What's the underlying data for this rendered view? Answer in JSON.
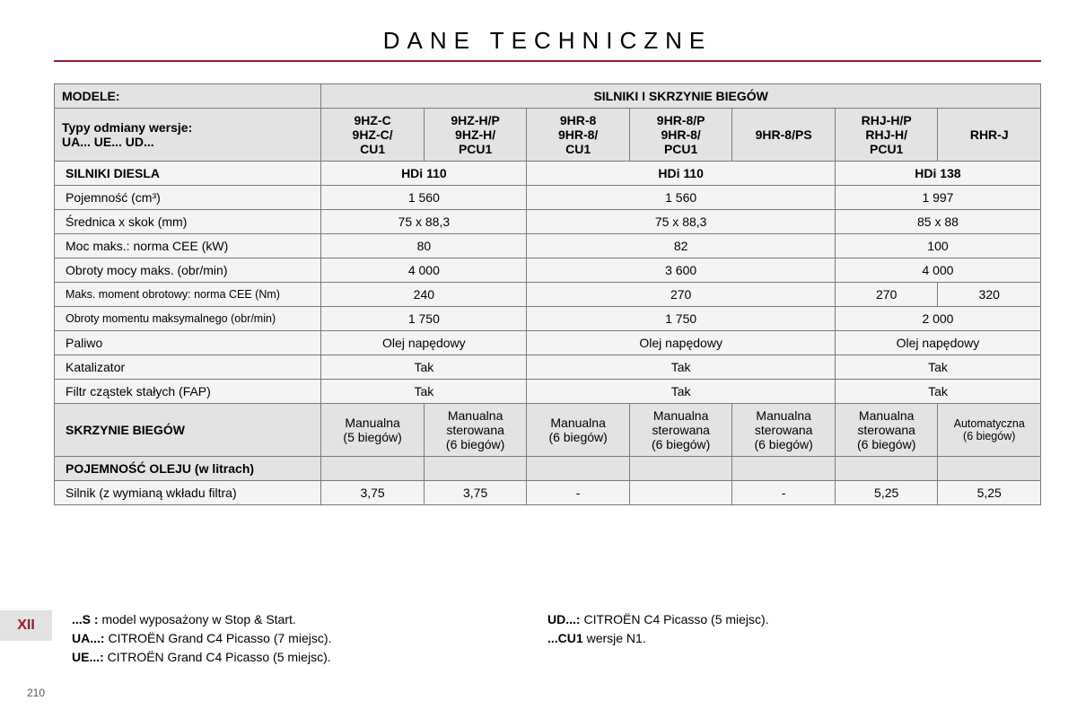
{
  "colors": {
    "rule": "#9a1b2e",
    "header_bg": "#e3e3e3",
    "body_bg": "#f4f4f4",
    "border": "#7a7a7a",
    "tab_bg": "#e3e3e3",
    "tab_text": "#9a1b2e"
  },
  "title": "DANE TECHNICZNE",
  "header": {
    "modele": "MODELE:",
    "silniki_header": "SILNIKI I SKRZYNIE BIEGÓW",
    "typy_line1": "Typy odmiany wersje:",
    "typy_line2": "UA... UE... UD...",
    "cols": [
      {
        "l1": "9HZ-C",
        "l2": "9HZ-C/",
        "l3": "CU1"
      },
      {
        "l1": "9HZ-H/P",
        "l2": "9HZ-H/",
        "l3": "PCU1"
      },
      {
        "l1": "9HR-8",
        "l2": "9HR-8/",
        "l3": "CU1"
      },
      {
        "l1": "9HR-8/P",
        "l2": "9HR-8/",
        "l3": "PCU1"
      },
      {
        "l1": "9HR-8/PS",
        "l2": "",
        "l3": ""
      },
      {
        "l1": "RHJ-H/P",
        "l2": "RHJ-H/",
        "l3": "PCU1"
      },
      {
        "l1": "RHR-J",
        "l2": "",
        "l3": ""
      }
    ]
  },
  "section_diesel": "SILNIKI DIESLA",
  "engine_names": {
    "g1": "HDi 110",
    "g2": "HDi 110",
    "g3": "HDi 138"
  },
  "rows": [
    {
      "label": "Pojemność (cm³)",
      "g1": "1 560",
      "g2": "1 560",
      "g3": "1 997"
    },
    {
      "label": "Średnica x skok (mm)",
      "g1": "75 x 88,3",
      "g2": "75 x 88,3",
      "g3": "85 x 88"
    },
    {
      "label": "Moc maks.: norma CEE (kW)",
      "g1": "80",
      "g2": "82",
      "g3": "100"
    },
    {
      "label": "Obroty mocy maks. (obr/min)",
      "g1": "4 000",
      "g2": "3 600",
      "g3": "4 000"
    }
  ],
  "torque_row": {
    "label": "Maks. moment obrotowy: norma CEE (Nm)",
    "g1": "240",
    "g2": "270",
    "g3a": "270",
    "g3b": "320"
  },
  "rows2": [
    {
      "label": "Obroty momentu maksymalnego (obr/min)",
      "g1": "1 750",
      "g2": "1 750",
      "g3": "2 000"
    },
    {
      "label": "Paliwo",
      "g1": "Olej napędowy",
      "g2": "Olej napędowy",
      "g3": "Olej napędowy"
    },
    {
      "label": "Katalizator",
      "g1": "Tak",
      "g2": "Tak",
      "g3": "Tak"
    },
    {
      "label": "Filtr cząstek stałych (FAP)",
      "g1": "Tak",
      "g2": "Tak",
      "g3": "Tak"
    }
  ],
  "gearbox": {
    "label": "SKRZYNIE BIEGÓW",
    "c1": {
      "l1": "Manualna",
      "l2": "(5 biegów)"
    },
    "c2": {
      "l1": "Manualna",
      "l2": "sterowana",
      "l3": "(6 biegów)"
    },
    "c3": {
      "l1": "Manualna",
      "l2": "(6 biegów)"
    },
    "c4": {
      "l1": "Manualna",
      "l2": "sterowana",
      "l3": "(6 biegów)"
    },
    "c5": {
      "l1": "Manualna",
      "l2": "sterowana",
      "l3": "(6 biegów)"
    },
    "c6": {
      "l1": "Manualna",
      "l2": "sterowana",
      "l3": "(6 biegów)"
    },
    "c7": {
      "l1": "Automatyczna",
      "l2": "(6 biegów)"
    }
  },
  "oil": {
    "header": "POJEMNOŚĆ OLEJU (w litrach)",
    "label": "Silnik (z wymianą wkładu filtra)",
    "vals": [
      "3,75",
      "3,75",
      "-",
      "",
      "-",
      "5,25",
      "5,25"
    ]
  },
  "tab": "XII",
  "legend": {
    "s_b": "...S :",
    "s_t": " model wyposażony w Stop & Start.",
    "ua_b": "UA...:",
    "ua_t": " CITROËN Grand C4 Picasso (7 miejsc).",
    "ue_b": "UE...:",
    "ue_t": " CITROËN Grand C4 Picasso (5 miejsc).",
    "ud_b": "UD...:",
    "ud_t": " CITROËN C4 Picasso (5 miejsc).",
    "cu_b": "...CU1",
    "cu_t": " wersje N1."
  },
  "pagenum": "210",
  "col_widths_pct": [
    27,
    10.4,
    10.4,
    10.4,
    10.4,
    10.4,
    10.4,
    10.4
  ]
}
